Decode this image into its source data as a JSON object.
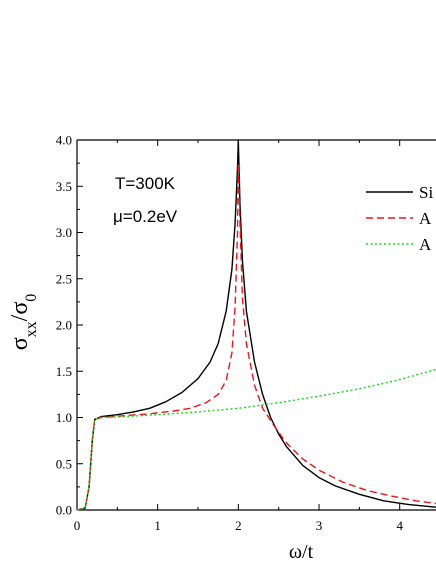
{
  "chart_data": {
    "type": "line",
    "title": "",
    "xlabel": "ω/t",
    "ylabel": {
      "main": "σ",
      "sub1": "xx",
      "slash": "/σ",
      "sub2": "0"
    },
    "xlim": [
      0,
      4.45
    ],
    "ylim": [
      0,
      4.0
    ],
    "x_ticks": [
      "0",
      "1",
      "2",
      "3",
      "4"
    ],
    "y_ticks": [
      "0.0",
      "0.5",
      "1.0",
      "1.5",
      "2.0",
      "2.5",
      "3.0",
      "3.5",
      "4.0"
    ],
    "annotations": [
      "T=300K",
      "μ=0.2eV"
    ],
    "legend_position": "top-right",
    "series": [
      {
        "name": "Si",
        "style": "solid",
        "color": "#000000",
        "points": [
          [
            0,
            0
          ],
          [
            0.1,
            0.02
          ],
          [
            0.15,
            0.25
          ],
          [
            0.19,
            0.75
          ],
          [
            0.22,
            0.98
          ],
          [
            0.3,
            1.01
          ],
          [
            0.5,
            1.03
          ],
          [
            0.7,
            1.06
          ],
          [
            0.9,
            1.1
          ],
          [
            1.1,
            1.17
          ],
          [
            1.3,
            1.27
          ],
          [
            1.5,
            1.42
          ],
          [
            1.65,
            1.6
          ],
          [
            1.75,
            1.8
          ],
          [
            1.85,
            2.15
          ],
          [
            1.92,
            2.6
          ],
          [
            1.96,
            3.1
          ],
          [
            1.99,
            3.7
          ],
          [
            2.0,
            4.0
          ],
          [
            2.02,
            3.3
          ],
          [
            2.05,
            2.7
          ],
          [
            2.1,
            2.15
          ],
          [
            2.2,
            1.6
          ],
          [
            2.3,
            1.25
          ],
          [
            2.4,
            1.0
          ],
          [
            2.5,
            0.82
          ],
          [
            2.6,
            0.68
          ],
          [
            2.8,
            0.48
          ],
          [
            3.0,
            0.35
          ],
          [
            3.2,
            0.26
          ],
          [
            3.5,
            0.17
          ],
          [
            3.8,
            0.1
          ],
          [
            4.1,
            0.06
          ],
          [
            4.45,
            0.03
          ]
        ]
      },
      {
        "name": "A",
        "style": "dashed",
        "color": "#e8161b",
        "points": [
          [
            0,
            0
          ],
          [
            0.1,
            0.02
          ],
          [
            0.15,
            0.25
          ],
          [
            0.19,
            0.75
          ],
          [
            0.22,
            0.98
          ],
          [
            0.3,
            1.0
          ],
          [
            0.6,
            1.02
          ],
          [
            0.9,
            1.04
          ],
          [
            1.2,
            1.07
          ],
          [
            1.4,
            1.1
          ],
          [
            1.6,
            1.16
          ],
          [
            1.75,
            1.25
          ],
          [
            1.85,
            1.4
          ],
          [
            1.92,
            1.7
          ],
          [
            1.96,
            2.2
          ],
          [
            1.99,
            3.0
          ],
          [
            2.0,
            3.75
          ],
          [
            2.02,
            3.1
          ],
          [
            2.05,
            2.3
          ],
          [
            2.1,
            1.8
          ],
          [
            2.2,
            1.35
          ],
          [
            2.3,
            1.1
          ],
          [
            2.45,
            0.9
          ],
          [
            2.6,
            0.72
          ],
          [
            2.8,
            0.55
          ],
          [
            3.0,
            0.43
          ],
          [
            3.3,
            0.3
          ],
          [
            3.6,
            0.21
          ],
          [
            3.9,
            0.15
          ],
          [
            4.2,
            0.1
          ],
          [
            4.45,
            0.07
          ]
        ]
      },
      {
        "name": "A",
        "style": "dotted",
        "color": "#18d818",
        "points": [
          [
            0,
            0
          ],
          [
            0.1,
            0.02
          ],
          [
            0.15,
            0.25
          ],
          [
            0.19,
            0.75
          ],
          [
            0.22,
            0.98
          ],
          [
            0.3,
            1.0
          ],
          [
            0.6,
            1.01
          ],
          [
            1.0,
            1.03
          ],
          [
            1.5,
            1.06
          ],
          [
            2.0,
            1.1
          ],
          [
            2.5,
            1.16
          ],
          [
            3.0,
            1.23
          ],
          [
            3.5,
            1.31
          ],
          [
            4.0,
            1.41
          ],
          [
            4.45,
            1.52
          ]
        ]
      }
    ]
  }
}
